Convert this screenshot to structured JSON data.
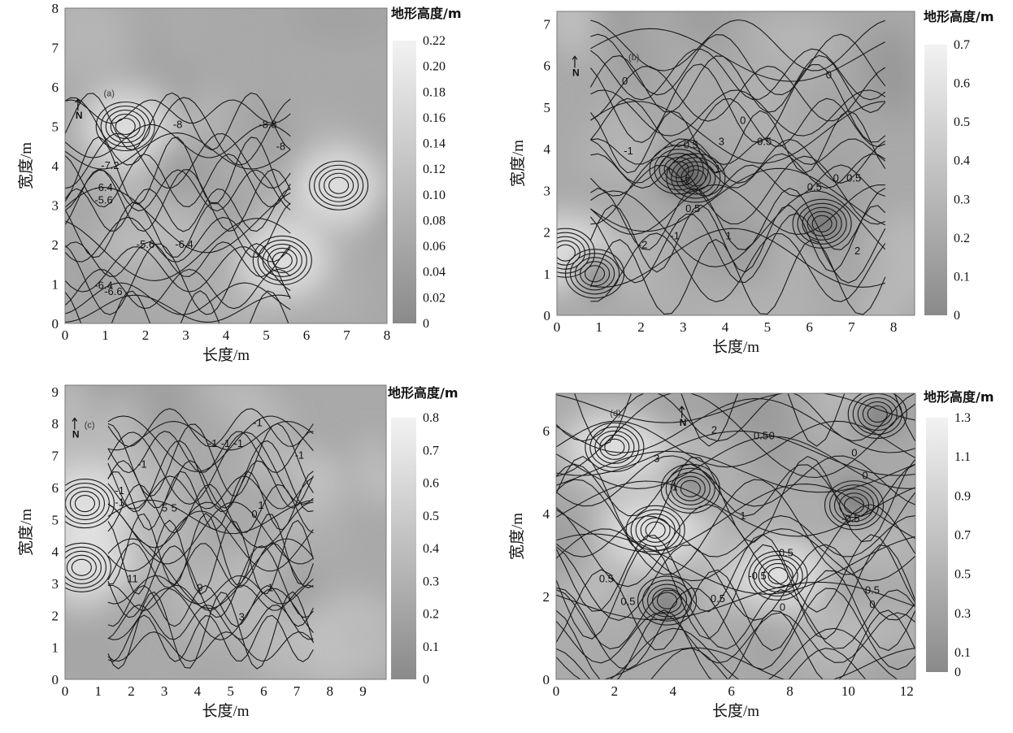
{
  "chart_data": [
    {
      "id": "a",
      "type": "heatmap",
      "panel_label": "(a)",
      "north_label": "N",
      "xlabel": "长度/m",
      "ylabel": "宽度/m",
      "xlim": [
        0,
        8
      ],
      "ylim": [
        0,
        8
      ],
      "x_ticks": [
        "0",
        "1",
        "2",
        "3",
        "4",
        "5",
        "6",
        "7",
        "8"
      ],
      "y_ticks": [
        "0",
        "1",
        "2",
        "3",
        "4",
        "5",
        "6",
        "7",
        "8"
      ],
      "colorbar": {
        "title": "地形高度/m",
        "min": 0,
        "max": 0.22,
        "ticks": [
          "0",
          "0.02",
          "0.04",
          "0.06",
          "0.08",
          "0.10",
          "0.12",
          "0.14",
          "0.16",
          "0.18",
          "0.20",
          "0.22"
        ]
      },
      "contour_labels": [
        "-8",
        "-8.8",
        "-8",
        "-7.2",
        "-6.4",
        "-5.6",
        "-5.6",
        "-6.4",
        "-6.4",
        "-6.6"
      ],
      "contour_values": [
        -8.8,
        -8,
        -7.2,
        -6.6,
        -6.4,
        -5.6
      ],
      "contour_region": {
        "x": [
          0,
          5.6
        ],
        "y": [
          0,
          5.5
        ]
      },
      "min_elevation_zones": [],
      "max_elevation_zones": [
        [
          6.8,
          3.5
        ],
        [
          5.4,
          1.6
        ],
        [
          1.5,
          5.0
        ]
      ]
    },
    {
      "id": "b",
      "type": "heatmap",
      "panel_label": "(b)",
      "north_label": "N",
      "xlabel": "长度/m",
      "ylabel": "宽度/m",
      "xlim": [
        0,
        8.5
      ],
      "ylim": [
        0,
        7.3
      ],
      "x_ticks": [
        "0",
        "1",
        "2",
        "3",
        "4",
        "5",
        "6",
        "7",
        "8"
      ],
      "y_ticks": [
        "0",
        "1",
        "2",
        "3",
        "4",
        "5",
        "6",
        "7"
      ],
      "colorbar": {
        "title": "地形高度/m",
        "min": 0,
        "max": 0.7,
        "ticks": [
          "0",
          "0.1",
          "0.2",
          "0.3",
          "0.4",
          "0.5",
          "0.6",
          "0.7"
        ]
      },
      "contour_labels": [
        "0",
        "0",
        "0",
        "-1",
        "-0.5",
        "3",
        "0.5",
        "-2",
        "1",
        "0.5",
        "0",
        "0.5",
        "0.5",
        "-2",
        "-1",
        "1",
        "2"
      ],
      "contour_values": [
        -2,
        -1,
        -0.5,
        0,
        0.5,
        1,
        2,
        3
      ],
      "contour_region": {
        "x": [
          0.8,
          7.8
        ],
        "y": [
          0.8,
          6.6
        ]
      },
      "min_elevation_zones": [
        [
          0.9,
          1.0
        ],
        [
          3.3,
          3.3
        ],
        [
          2.9,
          3.5
        ],
        [
          6.3,
          2.2
        ]
      ],
      "max_elevation_zones": [
        [
          0.2,
          1.5
        ]
      ]
    },
    {
      "id": "c",
      "type": "heatmap",
      "panel_label": "(c)",
      "north_label": "N",
      "xlabel": "长度/m",
      "ylabel": "宽度/m",
      "xlim": [
        0,
        9.7
      ],
      "ylim": [
        0,
        9.2
      ],
      "x_ticks": [
        "0",
        "1",
        "2",
        "3",
        "4",
        "5",
        "6",
        "7",
        "8",
        "9"
      ],
      "y_ticks": [
        "0",
        "1",
        "2",
        "3",
        "4",
        "5",
        "6",
        "7",
        "8",
        "9"
      ],
      "colorbar": {
        "title": "地形高度/m",
        "min": 0,
        "max": 0.8,
        "ticks": [
          "0",
          "0.1",
          "0.2",
          "0.3",
          "0.4",
          "0.5",
          "0.6",
          "0.7",
          "0.8"
        ]
      },
      "contour_labels": [
        "-1",
        "-1",
        "-1",
        "-1",
        "-1",
        "5",
        "5",
        "0",
        "1",
        "11",
        "9",
        "3",
        "1",
        "-1",
        "-1",
        "-1"
      ],
      "contour_values": [
        -1,
        0,
        1,
        3,
        5,
        9,
        11
      ],
      "contour_region": {
        "x": [
          1.3,
          7.5
        ],
        "y": [
          0.9,
          8.0
        ]
      },
      "min_elevation_zones": [],
      "max_elevation_zones": [
        [
          0.6,
          5.5
        ],
        [
          0.5,
          3.5
        ]
      ]
    },
    {
      "id": "d",
      "type": "heatmap",
      "panel_label": "(d)",
      "north_label": "N",
      "xlabel": "长度/m",
      "ylabel": "宽度/m",
      "xlim": [
        0,
        12.3
      ],
      "ylim": [
        0,
        6.9
      ],
      "x_ticks": [
        "0",
        "2",
        "4",
        "6",
        "8",
        "10",
        "12"
      ],
      "y_ticks": [
        "0",
        "2",
        "4",
        "6"
      ],
      "colorbar": {
        "title": "地形高度/m",
        "min": 0,
        "max": 1.3,
        "ticks": [
          "0",
          "0.1",
          "0.3",
          "0.5",
          "0.7",
          "0.9",
          "1.1",
          "1.3"
        ]
      },
      "contour_labels": [
        "2",
        "0.5",
        "0",
        "3",
        "1",
        "0",
        "0.5",
        "-0.5",
        "0",
        "0.5",
        "0.5",
        "0",
        "0.5",
        "-0.5",
        "0.5",
        "1",
        "0"
      ],
      "contour_values": [
        -0.5,
        0,
        0.5,
        1,
        2,
        3
      ],
      "contour_region": {
        "x": [
          0,
          12.3
        ],
        "y": [
          0,
          6.9
        ]
      },
      "min_elevation_zones": [
        [
          4.6,
          4.6
        ],
        [
          3.8,
          1.9
        ],
        [
          11.0,
          6.4
        ],
        [
          10.2,
          4.2
        ]
      ],
      "max_elevation_zones": [
        [
          3.4,
          3.6
        ],
        [
          7.6,
          2.5
        ],
        [
          2.0,
          5.6
        ]
      ]
    }
  ]
}
